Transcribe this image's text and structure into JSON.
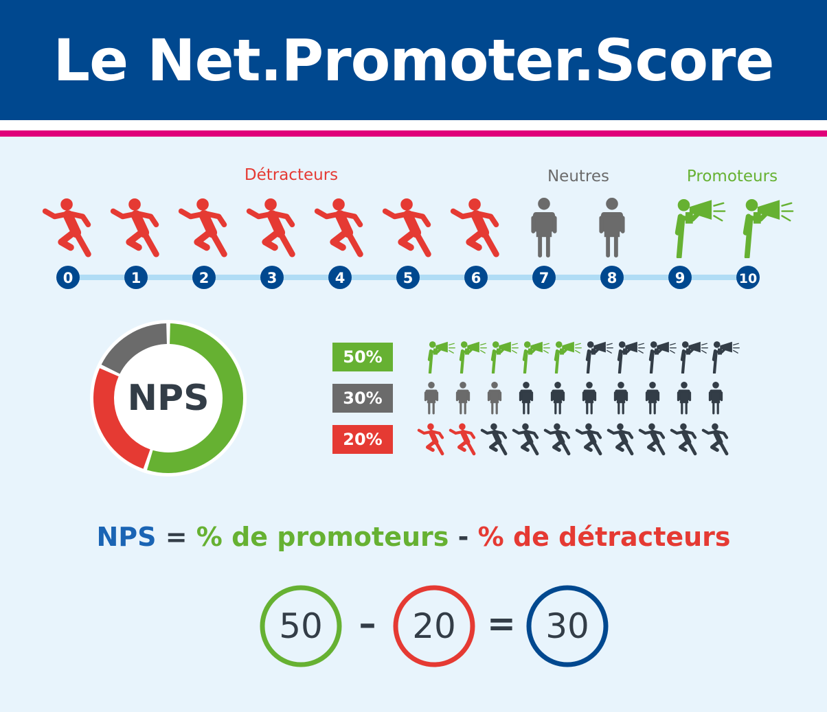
{
  "title": "Le Net.Promoter.Score",
  "colors": {
    "header": "#00488f",
    "accent_pink": "#e0007a",
    "detractor": "#e53a33",
    "neutral": "#6b6b6b",
    "promoter": "#66b132",
    "dark": "#333d47",
    "scale_dot": "#00488f",
    "scale_line": "#b0dcf5",
    "nps_blue": "#1a64b4"
  },
  "scale": {
    "categories": [
      {
        "label": "Détracteurs",
        "icon": "runner-icon",
        "scores": [
          0,
          1,
          2,
          3,
          4,
          5,
          6
        ]
      },
      {
        "label": "Neutres",
        "icon": "person-icon",
        "scores": [
          7,
          8
        ]
      },
      {
        "label": "Promoteurs",
        "icon": "megaphone-person-icon",
        "scores": [
          9,
          10
        ]
      }
    ],
    "scores": [
      "0",
      "1",
      "2",
      "3",
      "4",
      "5",
      "6",
      "7",
      "8",
      "9",
      "10"
    ]
  },
  "donut": {
    "label": "NPS",
    "segments": [
      {
        "category": "promoteurs",
        "share": 0.55
      },
      {
        "category": "détracteurs",
        "share": 0.27
      },
      {
        "category": "neutres",
        "share": 0.18
      }
    ]
  },
  "breakdown": [
    {
      "label": "50%",
      "category": "promoteurs",
      "icon": "megaphone-person-icon",
      "highlighted": 5,
      "total": 10
    },
    {
      "label": "30%",
      "category": "neutres",
      "icon": "person-icon",
      "highlighted": 3,
      "total": 10
    },
    {
      "label": "20%",
      "category": "détracteurs",
      "icon": "runner-icon",
      "highlighted": 2,
      "total": 10
    }
  ],
  "formula": {
    "nps": "NPS",
    "eq": "=",
    "promoters": "% de promoteurs",
    "minus": "-",
    "detractors": "% de détracteurs"
  },
  "calculation": {
    "promoters": "50",
    "minus": "–",
    "detractors": "20",
    "equals": "=",
    "result": "30"
  }
}
